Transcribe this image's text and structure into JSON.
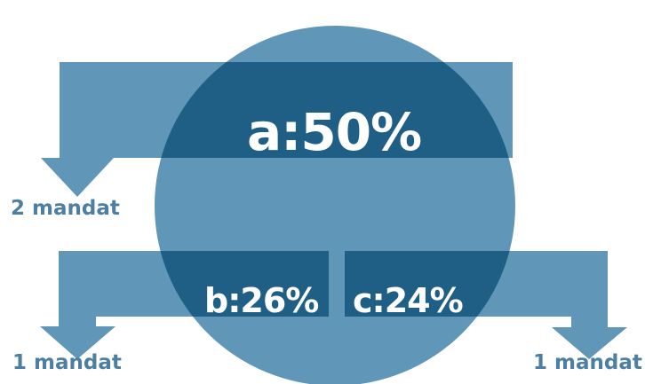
{
  "segments": [
    {
      "party": "a",
      "share_text": "a:50%",
      "share": 50,
      "mandates_text": "2 mandat",
      "mandates": 2
    },
    {
      "party": "b",
      "share_text": "b:26%",
      "share": 26,
      "mandates_text": "1 mandat",
      "mandates": 1
    },
    {
      "party": "c",
      "share_text": "c:24%",
      "share": 24,
      "mandates_text": "1 mandat",
      "mandates": 1
    }
  ],
  "colors": {
    "light": "#6096b8",
    "dark": "#1f5f86",
    "text_light": "#ffffff",
    "text_mandate": "#4c7fa1",
    "background": "#ffffff"
  }
}
